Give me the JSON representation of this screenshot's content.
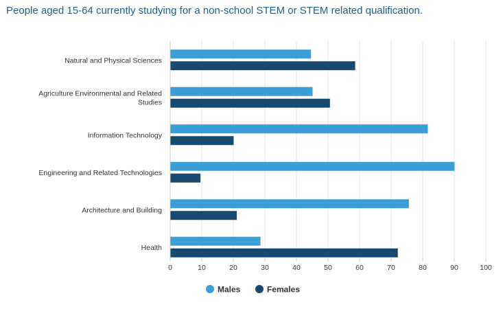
{
  "chart_data": {
    "type": "bar",
    "orientation": "horizontal",
    "title": "People aged 15-64 currently studying for a non-school STEM or STEM related qualification.",
    "categories": [
      "Natural and Physical Sciences",
      "Agriculture Environmental and Related Studies",
      "Information Technology",
      "Engineering and Related Technologies",
      "Architecture and Building",
      "Health"
    ],
    "category_label_lines": [
      [
        "Natural and Physical Sciences"
      ],
      [
        "Agriculture Environmental and Related",
        "Studies"
      ],
      [
        "Information Technology"
      ],
      [
        "Engineering and Related Technologies"
      ],
      [
        "Architecture and Building"
      ],
      [
        "Health"
      ]
    ],
    "series": [
      {
        "name": "Males",
        "color": "#3c9ed6",
        "values": [
          44.5,
          45,
          81.5,
          90,
          75.5,
          28.5
        ]
      },
      {
        "name": "Females",
        "color": "#174a6e",
        "values": [
          58.5,
          50.5,
          20,
          9.5,
          21,
          72
        ]
      }
    ],
    "xlim": [
      0,
      100
    ],
    "xticks": [
      "0",
      "10",
      "20",
      "30",
      "40",
      "50",
      "60",
      "70",
      "80",
      "90",
      "100"
    ],
    "grid": true,
    "legend_position": "bottom-center"
  }
}
